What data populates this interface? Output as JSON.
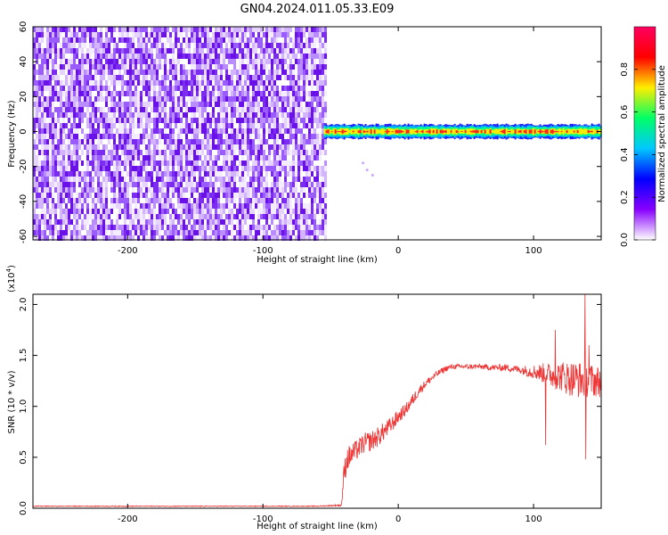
{
  "figure_title": "GN04.2024.011.05.33.E09",
  "chart_data": [
    {
      "type": "heatmap",
      "title": "",
      "xlabel": "Height of straight line (km)",
      "ylabel": "Frequency (Hz)",
      "xlim": [
        -270,
        150
      ],
      "ylim": [
        -62,
        60
      ],
      "x_ticks": [
        -200,
        -100,
        0,
        100
      ],
      "y_ticks": [
        -60,
        -40,
        -20,
        0,
        20,
        40,
        60
      ],
      "grid": false,
      "noise_region": {
        "x_range": [
          -270,
          -53
        ],
        "freq_range": [
          -62,
          60
        ],
        "amplitude_range": [
          0.0,
          0.15
        ]
      },
      "signal_band": {
        "x_range": [
          -55,
          150
        ],
        "center_freq": 0,
        "half_width": 4,
        "peak_amplitude": 0.85
      },
      "stray_points": [
        {
          "x": -26,
          "f": -18
        },
        {
          "x": -23,
          "f": -22
        },
        {
          "x": -19,
          "f": -25
        }
      ],
      "colorbar": {
        "label": "Normalized spectral amplitude",
        "range": [
          0.0,
          1.0
        ],
        "ticks": [
          0.0,
          0.2,
          0.4,
          0.6,
          0.8
        ],
        "colors": [
          "#ffffff",
          "#8800ff",
          "#0000ff",
          "#00c8ff",
          "#00ff66",
          "#ffee00",
          "#ff0000",
          "#ff0060"
        ]
      }
    },
    {
      "type": "line",
      "title": "",
      "xlabel": "Height of straight line (km)",
      "ylabel": "SNR (10 * v/v)",
      "y_scale_note": "(x10",
      "y_scale_exp": "4",
      "y_scale_close": ")",
      "xlim": [
        -270,
        150
      ],
      "ylim": [
        0,
        2.1
      ],
      "x_ticks": [
        -200,
        -100,
        0,
        100
      ],
      "y_ticks": [
        0.0,
        0.5,
        1.0,
        1.5,
        2.0
      ],
      "grid": false,
      "series": [
        {
          "color": "#ee3333",
          "x": [
            -270,
            -200,
            -100,
            -60,
            -42,
            -40,
            -38,
            -35,
            -30,
            -25,
            -20,
            -15,
            -10,
            -5,
            0,
            5,
            10,
            15,
            20,
            25,
            30,
            35,
            40,
            50,
            60,
            70,
            80,
            90,
            100,
            105,
            110,
            115,
            120,
            125,
            130,
            135,
            140,
            145,
            150
          ],
          "values": [
            0.02,
            0.02,
            0.02,
            0.02,
            0.03,
            0.35,
            0.48,
            0.52,
            0.58,
            0.64,
            0.66,
            0.7,
            0.76,
            0.82,
            0.9,
            0.96,
            1.05,
            1.15,
            1.22,
            1.28,
            1.33,
            1.37,
            1.39,
            1.39,
            1.39,
            1.38,
            1.38,
            1.36,
            1.34,
            1.33,
            1.32,
            1.3,
            1.3,
            1.28,
            1.27,
            1.26,
            1.26,
            1.25,
            1.24
          ],
          "noise": [
            0.004,
            0.004,
            0.004,
            0.004,
            0.01,
            0.12,
            0.12,
            0.11,
            0.1,
            0.1,
            0.1,
            0.1,
            0.09,
            0.08,
            0.07,
            0.06,
            0.06,
            0.05,
            0.04,
            0.035,
            0.03,
            0.03,
            0.025,
            0.025,
            0.025,
            0.03,
            0.035,
            0.04,
            0.07,
            0.09,
            0.11,
            0.13,
            0.15,
            0.17,
            0.18,
            0.18,
            0.17,
            0.16,
            0.15
          ]
        }
      ],
      "spikes": [
        {
          "x": 109,
          "y": 0.62
        },
        {
          "x": 116,
          "y": 1.75
        },
        {
          "x": 138,
          "y": 2.1
        },
        {
          "x": 138.5,
          "y": 0.48
        },
        {
          "x": 141,
          "y": 1.6
        }
      ]
    }
  ]
}
